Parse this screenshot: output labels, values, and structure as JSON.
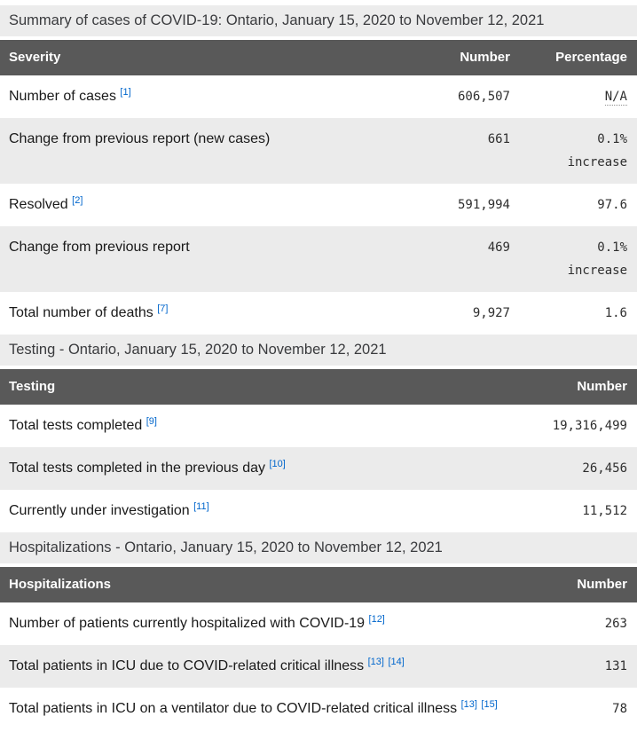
{
  "colors": {
    "caption_bg": "#ececec",
    "header_bg": "#595959",
    "header_text": "#ffffff",
    "row_alt_bg": "#ebebeb",
    "link_blue": "#0066cc",
    "body_text": "#1a1a1a"
  },
  "tables": [
    {
      "caption": "Summary of cases of COVID-19: Ontario, January 15, 2020 to November 12, 2021",
      "columns": [
        "Severity",
        "Number",
        "Percentage"
      ],
      "rows": [
        {
          "label": "Number of cases",
          "footnotes": [
            "[1]"
          ],
          "number": "606,507",
          "percentage": "N/A"
        },
        {
          "label": "Change from previous report (new cases)",
          "footnotes": [],
          "number": "661",
          "percentage": "0.1%",
          "percentage_note": "increase"
        },
        {
          "label": "Resolved",
          "footnotes": [
            "[2]"
          ],
          "number": "591,994",
          "percentage": "97.6"
        },
        {
          "label": "Change from previous report",
          "footnotes": [],
          "number": "469",
          "percentage": "0.1%",
          "percentage_note": "increase"
        },
        {
          "label": "Total number of deaths",
          "footnotes": [
            "[7]"
          ],
          "number": "9,927",
          "percentage": "1.6"
        }
      ]
    },
    {
      "caption": "Testing - Ontario, January 15, 2020 to November 12, 2021",
      "columns": [
        "Testing",
        "Number"
      ],
      "rows": [
        {
          "label": "Total tests completed",
          "footnotes": [
            "[9]"
          ],
          "number": "19,316,499"
        },
        {
          "label": "Total tests completed in the previous day",
          "footnotes": [
            "[10]"
          ],
          "number": "26,456"
        },
        {
          "label": "Currently under investigation",
          "footnotes": [
            "[11]"
          ],
          "number": "11,512"
        }
      ]
    },
    {
      "caption": "Hospitalizations - Ontario, January 15, 2020 to November 12, 2021",
      "columns": [
        "Hospitalizations",
        "Number"
      ],
      "rows": [
        {
          "label": "Number of patients currently hospitalized with COVID-19",
          "footnotes": [
            "[12]"
          ],
          "number": "263"
        },
        {
          "label": "Total patients in ICU due to COVID-related critical illness",
          "footnotes": [
            "[13]",
            "[14]"
          ],
          "number": "131"
        },
        {
          "label": "Total patients in ICU on a ventilator due to COVID-related critical illness",
          "footnotes": [
            "[13]",
            "[15]"
          ],
          "number": "78"
        }
      ]
    }
  ]
}
